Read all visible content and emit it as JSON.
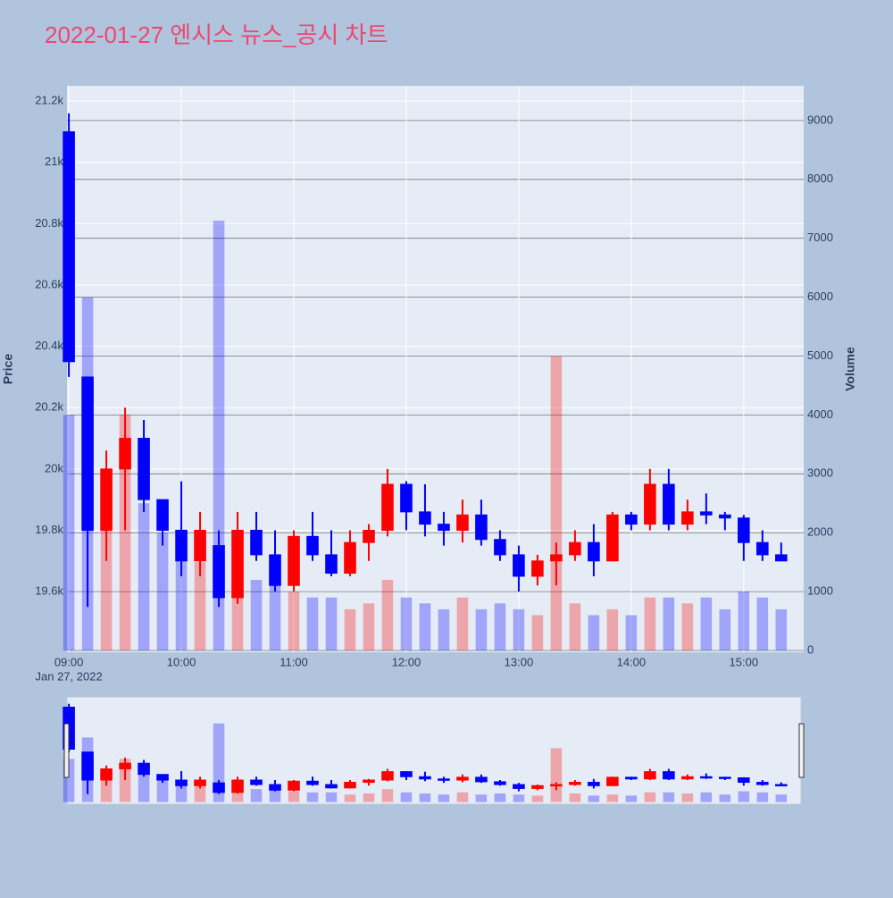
{
  "chart_data": {
    "type": "candlestick",
    "title": "2022-01-27 엔시스 뉴스_공시 차트",
    "y_title": "Price",
    "y2_title": "Volume",
    "increasing_color": "#ff0000",
    "decreasing_color": "#0000ff",
    "x": [
      "09:00",
      "09:10",
      "09:20",
      "09:30",
      "09:40",
      "09:50",
      "10:00",
      "10:10",
      "10:20",
      "10:30",
      "10:40",
      "10:50",
      "11:00",
      "11:10",
      "11:20",
      "11:30",
      "11:40",
      "11:50",
      "12:00",
      "12:10",
      "12:20",
      "12:30",
      "12:40",
      "12:50",
      "13:00",
      "13:10",
      "13:20",
      "13:30",
      "13:40",
      "13:50",
      "14:00",
      "14:10",
      "14:20",
      "14:30",
      "14:40",
      "14:50",
      "15:00",
      "15:10",
      "15:20"
    ],
    "open": [
      21100,
      20300,
      19800,
      20000,
      20100,
      19900,
      19800,
      19700,
      19750,
      19580,
      19800,
      19720,
      19620,
      19780,
      19720,
      19660,
      19760,
      19800,
      19950,
      19860,
      19820,
      19800,
      19850,
      19770,
      19720,
      19650,
      19700,
      19720,
      19760,
      19700,
      19850,
      19820,
      19950,
      19820,
      19860,
      19850,
      19840,
      19760,
      19720
    ],
    "high": [
      21160,
      20300,
      20060,
      20200,
      20160,
      19900,
      19960,
      19860,
      19800,
      19860,
      19860,
      19800,
      19800,
      19860,
      19800,
      19800,
      19820,
      20000,
      19960,
      19950,
      19860,
      19900,
      19900,
      19800,
      19750,
      19720,
      19760,
      19800,
      19820,
      19860,
      19860,
      20000,
      20000,
      19900,
      19920,
      19860,
      19850,
      19800,
      19760
    ],
    "low": [
      20300,
      19550,
      19700,
      19800,
      19860,
      19750,
      19650,
      19650,
      19550,
      19560,
      19700,
      19600,
      19600,
      19700,
      19650,
      19650,
      19700,
      19780,
      19800,
      19780,
      19750,
      19760,
      19750,
      19700,
      19600,
      19620,
      19620,
      19700,
      19650,
      19700,
      19800,
      19800,
      19800,
      19800,
      19820,
      19800,
      19700,
      19700,
      19700
    ],
    "close": [
      20350,
      19800,
      20000,
      20100,
      19900,
      19800,
      19700,
      19800,
      19580,
      19800,
      19720,
      19620,
      19780,
      19720,
      19660,
      19760,
      19800,
      19950,
      19860,
      19820,
      19800,
      19850,
      19770,
      19720,
      19650,
      19700,
      19720,
      19760,
      19700,
      19850,
      19820,
      19950,
      19820,
      19860,
      19850,
      19840,
      19760,
      19720,
      19700
    ],
    "volume": [
      4000,
      6000,
      3000,
      4000,
      2500,
      2000,
      1800,
      1500,
      7300,
      1500,
      1200,
      1300,
      1000,
      900,
      900,
      700,
      800,
      1200,
      900,
      800,
      700,
      900,
      700,
      800,
      700,
      600,
      5000,
      800,
      600,
      700,
      600,
      900,
      900,
      800,
      900,
      700,
      1000,
      900,
      700
    ],
    "xlim": [
      "08:59",
      "15:32"
    ],
    "xticks": [
      "09:00",
      "10:00",
      "11:00",
      "12:00",
      "13:00",
      "14:00",
      "15:00"
    ],
    "xtick_date": "Jan 27, 2022",
    "ylim": [
      19402,
      21250
    ],
    "yticks": [
      {
        "value": 19600,
        "label": "19.6k"
      },
      {
        "value": 19800,
        "label": "19.8k"
      },
      {
        "value": 20000,
        "label": "20k"
      },
      {
        "value": 20200,
        "label": "20.2k"
      },
      {
        "value": 20400,
        "label": "20.4k"
      },
      {
        "value": 20600,
        "label": "20.6k"
      },
      {
        "value": 20800,
        "label": "20.8k"
      },
      {
        "value": 21000,
        "label": "21k"
      },
      {
        "value": 21200,
        "label": "21.2k"
      }
    ],
    "y2lim": [
      -30,
      9590
    ],
    "y2ticks": [
      0,
      1000,
      2000,
      3000,
      4000,
      5000,
      6000,
      7000,
      8000,
      9000
    ]
  }
}
